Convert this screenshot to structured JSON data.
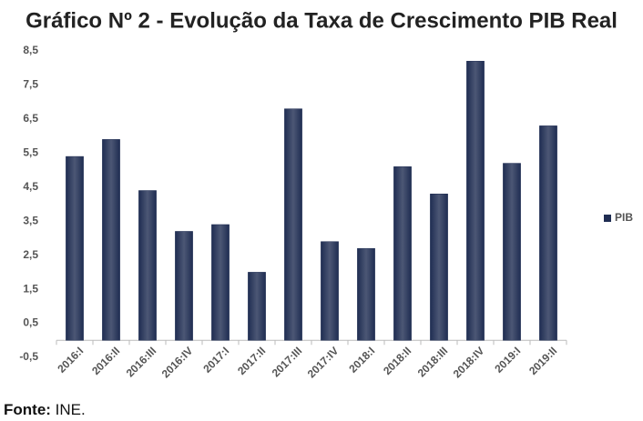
{
  "chart_data": {
    "type": "bar",
    "title": "Gráfico Nº 2 - Evolução da Taxa de Crescimento PIB Real",
    "categories": [
      "2016:I",
      "2016:II",
      "2016:III",
      "2016:IV",
      "2017:I",
      "2017:II",
      "2017:III",
      "2017:IV",
      "2018:I",
      "2018:II",
      "2018:III",
      "2018:IV",
      "2019:I",
      "2019:II"
    ],
    "series": [
      {
        "name": "PIB",
        "color": "#1f2d52",
        "values": [
          5.4,
          5.9,
          4.4,
          3.2,
          3.4,
          2.0,
          6.8,
          2.9,
          2.7,
          5.1,
          4.3,
          8.2,
          5.2,
          6.3
        ]
      }
    ],
    "ylim": [
      -0.5,
      8.5
    ],
    "yticks": [
      {
        "value": -0.5,
        "label": "-0,5"
      },
      {
        "value": 0.5,
        "label": "0,5"
      },
      {
        "value": 1.5,
        "label": "1,5"
      },
      {
        "value": 2.5,
        "label": "2,5"
      },
      {
        "value": 3.5,
        "label": "3,5"
      },
      {
        "value": 4.5,
        "label": "4,5"
      },
      {
        "value": 5.5,
        "label": "5,5"
      },
      {
        "value": 6.5,
        "label": "6,5"
      },
      {
        "value": 7.5,
        "label": "7,5"
      },
      {
        "value": 8.5,
        "label": "8,5"
      }
    ],
    "grid": false,
    "legend": "right",
    "source_label": "Fonte:",
    "source": "INE."
  }
}
